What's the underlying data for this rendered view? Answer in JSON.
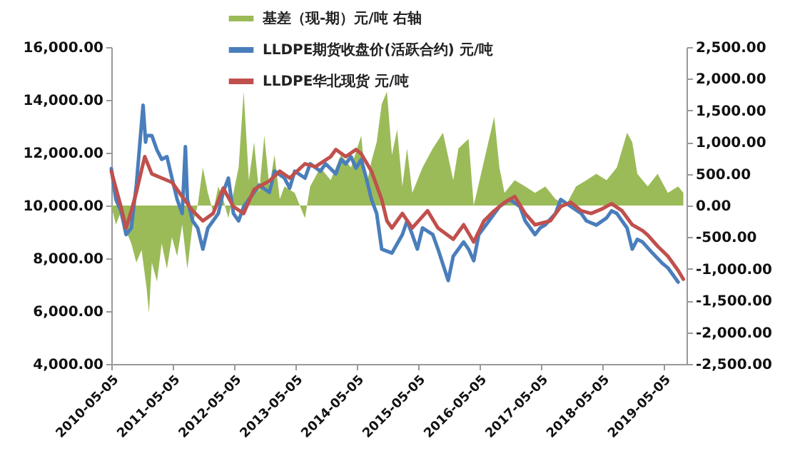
{
  "chart_data": {
    "type": "line",
    "legend": "top",
    "xlim": [
      "2010-05-05",
      "2019-09-20"
    ],
    "xticks": [
      "2010-05-05",
      "2011-05-05",
      "2012-05-05",
      "2013-05-05",
      "2014-05-05",
      "2015-05-05",
      "2016-05-05",
      "2017-05-05",
      "2018-05-05",
      "2019-05-05"
    ],
    "ylim": [
      4000,
      16000
    ],
    "yticks": [
      {
        "value": 4000,
        "label": "4,000.00"
      },
      {
        "value": 6000,
        "label": "6,000.00"
      },
      {
        "value": 8000,
        "label": "8,000.00"
      },
      {
        "value": 10000,
        "label": "10,000.00"
      },
      {
        "value": 12000,
        "label": "12,000.00"
      },
      {
        "value": 14000,
        "label": "14,000.00"
      },
      {
        "value": 16000,
        "label": "16,000.00"
      }
    ],
    "y2lim": [
      -2500,
      2500
    ],
    "y2ticks": [
      {
        "value": -2500,
        "label": "-2,500.00"
      },
      {
        "value": -2000,
        "label": "-2,000.00"
      },
      {
        "value": -1500,
        "label": "-1,500.00"
      },
      {
        "value": -1000,
        "label": "-1,000.00"
      },
      {
        "value": -500,
        "label": "-500.00"
      },
      {
        "value": 0,
        "label": "0.00"
      },
      {
        "value": 500,
        "label": "500.00"
      },
      {
        "value": 1000,
        "label": "1,000.00"
      },
      {
        "value": 1500,
        "label": "1,500.00"
      },
      {
        "value": 2000,
        "label": "2,000.00"
      },
      {
        "value": 2500,
        "label": "2,500.00"
      }
    ],
    "series": [
      {
        "name": "基差（现-期）元/吨 右轴",
        "type": "area",
        "axis": "y2",
        "color": "#9bbb59",
        "x": [
          "2010-05-05",
          "2010-06",
          "2010-07",
          "2010-08",
          "2010-09",
          "2010-10",
          "2010-11",
          "2010-12",
          "2010-12-15",
          "2011-01",
          "2011-02",
          "2011-03",
          "2011-04",
          "2011-05",
          "2011-06",
          "2011-07",
          "2011-08",
          "2011-09",
          "2011-10",
          "2011-11",
          "2011-12",
          "2012-01",
          "2012-02",
          "2012-03",
          "2012-04",
          "2012-05",
          "2012-06",
          "2012-07",
          "2012-08",
          "2012-09",
          "2012-10",
          "2012-11",
          "2012-12",
          "2013-01",
          "2013-02",
          "2013-03",
          "2013-05",
          "2013-07",
          "2013-08",
          "2013-10",
          "2013-12",
          "2014-02",
          "2014-04",
          "2014-06",
          "2014-07",
          "2014-08",
          "2014-09",
          "2014-10",
          "2014-11",
          "2014-12",
          "2015-01",
          "2015-02",
          "2015-03",
          "2015-04",
          "2015-06",
          "2015-08",
          "2015-10",
          "2015-12",
          "2016-01",
          "2016-03",
          "2016-04",
          "2016-06",
          "2016-08",
          "2016-09",
          "2016-10",
          "2016-12",
          "2017-02",
          "2017-04",
          "2017-06",
          "2017-08",
          "2017-10",
          "2017-12",
          "2018-02",
          "2018-04",
          "2018-06",
          "2018-08",
          "2018-10",
          "2018-11",
          "2018-12",
          "2019-02",
          "2019-04",
          "2019-06",
          "2019-08",
          "2019-09"
        ],
        "values": [
          0,
          -300,
          -100,
          -400,
          -600,
          -900,
          -700,
          -1300,
          -1700,
          -900,
          -1200,
          -600,
          -1000,
          -500,
          -800,
          -300,
          -1000,
          -300,
          0,
          600,
          200,
          -100,
          300,
          100,
          -200,
          200,
          600,
          1800,
          400,
          1000,
          200,
          1100,
          300,
          800,
          100,
          300,
          200,
          -200,
          300,
          600,
          400,
          800,
          600,
          1100,
          300,
          700,
          1000,
          1600,
          1800,
          800,
          1200,
          300,
          900,
          200,
          600,
          900,
          1150,
          400,
          900,
          1050,
          0,
          700,
          1400,
          600,
          200,
          400,
          300,
          200,
          300,
          100,
          0,
          300,
          400,
          500,
          400,
          600,
          1150,
          1000,
          500,
          300,
          500,
          200,
          300,
          200
        ]
      },
      {
        "name": "LLDPE期货收盘价(活跃合约) 元/吨",
        "color": "#4a7ebb",
        "x": [
          "2010-05-05",
          "2010-06",
          "2010-07",
          "2010-08",
          "2010-09",
          "2010-10",
          "2010-11-10",
          "2010-11-25",
          "2010-12",
          "2011-01",
          "2011-02",
          "2011-03",
          "2011-04",
          "2011-05",
          "2011-06",
          "2011-07",
          "2011-07-20",
          "2011-08",
          "2011-09",
          "2011-10",
          "2011-11",
          "2011-12",
          "2012-01",
          "2012-02",
          "2012-03",
          "2012-04",
          "2012-05",
          "2012-06",
          "2012-07",
          "2012-09",
          "2012-10",
          "2012-12",
          "2013-01",
          "2013-03",
          "2013-04",
          "2013-05",
          "2013-07",
          "2013-08",
          "2013-10",
          "2013-11",
          "2014-01",
          "2014-02",
          "2014-03",
          "2014-04",
          "2014-05",
          "2014-06",
          "2014-07",
          "2014-08",
          "2014-09",
          "2014-10",
          "2014-12",
          "2015-02",
          "2015-03",
          "2015-04",
          "2015-05",
          "2015-06",
          "2015-08",
          "2015-09",
          "2015-11",
          "2015-12",
          "2016-02",
          "2016-03",
          "2016-04",
          "2016-05",
          "2016-07",
          "2016-09",
          "2016-11",
          "2017-01",
          "2017-02",
          "2017-04",
          "2017-05",
          "2017-06",
          "2017-08",
          "2017-09",
          "2017-11",
          "2018-01",
          "2018-02",
          "2018-04",
          "2018-06",
          "2018-07",
          "2018-08",
          "2018-10",
          "2018-11",
          "2018-12",
          "2019-01",
          "2019-03",
          "2019-05",
          "2019-06",
          "2019-08"
        ],
        "values": [
          11400,
          10230,
          9800,
          8900,
          9150,
          10770,
          13800,
          12400,
          12650,
          12650,
          12100,
          11750,
          11850,
          11040,
          10230,
          9700,
          12230,
          10230,
          9420,
          9150,
          8350,
          9150,
          9420,
          9700,
          10500,
          11040,
          9700,
          9420,
          9960,
          10500,
          10770,
          10500,
          11300,
          11040,
          10660,
          11300,
          11040,
          11580,
          11300,
          11580,
          11200,
          11740,
          11580,
          11850,
          11420,
          11740,
          11040,
          10230,
          9700,
          8350,
          8200,
          8900,
          9420,
          8900,
          8350,
          9150,
          8900,
          8350,
          7160,
          8080,
          8620,
          8350,
          7910,
          8900,
          9420,
          9960,
          10230,
          9960,
          9420,
          8900,
          9150,
          9270,
          9700,
          10230,
          9960,
          9700,
          9420,
          9260,
          9530,
          9800,
          9700,
          9150,
          8350,
          8720,
          8620,
          8200,
          7800,
          7640,
          7100
        ]
      },
      {
        "name": "LLDPE华北现货 元/吨",
        "color": "#c0504d",
        "x": [
          "2010-05-05",
          "2010-07",
          "2010-08",
          "2010-09",
          "2010-10",
          "2010-11-20",
          "2011-01",
          "2011-03",
          "2011-05",
          "2011-07",
          "2011-09",
          "2011-11",
          "2012-01",
          "2012-03",
          "2012-05",
          "2012-07",
          "2012-09",
          "2012-12",
          "2013-02",
          "2013-04",
          "2013-07",
          "2013-09",
          "2013-12",
          "2014-01",
          "2014-03",
          "2014-05",
          "2014-06",
          "2014-08",
          "2014-10",
          "2014-11",
          "2014-12",
          "2015-02",
          "2015-04",
          "2015-07",
          "2015-09",
          "2015-12",
          "2016-02",
          "2016-04",
          "2016-06",
          "2016-08",
          "2016-10",
          "2016-12",
          "2017-02",
          "2017-04",
          "2017-07",
          "2017-09",
          "2017-11",
          "2018-01",
          "2018-03",
          "2018-05",
          "2018-07",
          "2018-09",
          "2018-11",
          "2019-01",
          "2019-02",
          "2019-04",
          "2019-06",
          "2019-08",
          "2019-09"
        ],
        "values": [
          11300,
          9960,
          9150,
          9800,
          10500,
          11850,
          11200,
          11040,
          10880,
          10340,
          9800,
          9420,
          9700,
          10660,
          9960,
          9700,
          10610,
          10930,
          11300,
          11040,
          11580,
          11470,
          11850,
          12120,
          11850,
          12120,
          11960,
          11300,
          10230,
          9420,
          9150,
          9700,
          9150,
          9800,
          9150,
          8720,
          9270,
          8620,
          9420,
          9800,
          10120,
          10340,
          9700,
          9270,
          9420,
          9960,
          10120,
          9800,
          9700,
          9860,
          10070,
          9800,
          9270,
          9050,
          8880,
          8460,
          8080,
          7540,
          7210
        ]
      }
    ]
  }
}
